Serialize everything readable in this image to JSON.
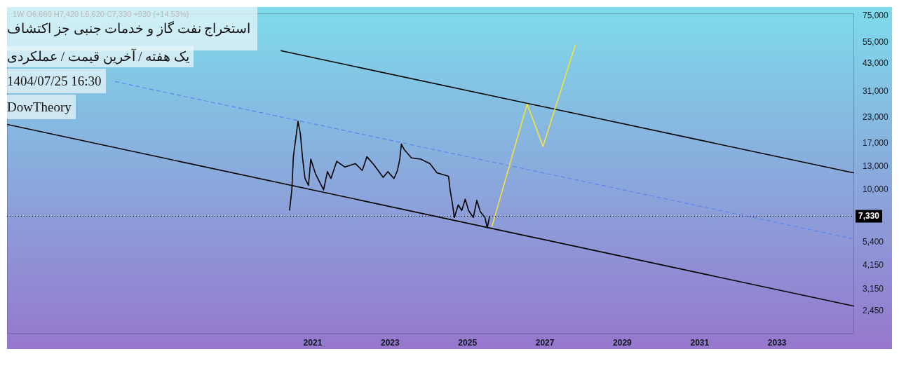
{
  "chart_data": {
    "type": "line",
    "title": "استخراج نفت گاز و خدمات جنبی جز اکتشاف",
    "subtitle": "یک هفته / آخرین قیمت / عملکردی",
    "annotations": [
      "1W  O6,660  H7,420  L6,620  C7,330  +930 (+14.53%)",
      "1404/07/25 16:30",
      "DowTheory"
    ],
    "series": [
      {
        "color": "#000000",
        "x": [
          2020.4,
          2020.46,
          2020.5,
          2020.62,
          2020.68,
          2020.74,
          2020.8,
          2020.89,
          2020.95,
          2021.07,
          2021.28,
          2021.38,
          2021.47,
          2021.62,
          2021.83,
          2022.1,
          2022.28,
          2022.4,
          2022.58,
          2022.82,
          2022.94,
          2023.1,
          2023.19,
          2023.25,
          2023.29,
          2023.37,
          2023.55,
          2023.79,
          2024.03,
          2024.21,
          2024.51,
          2024.55,
          2024.61,
          2024.66,
          2024.76,
          2024.85,
          2024.94,
          2025.03,
          2025.15,
          2025.24,
          2025.33,
          2025.45,
          2025.51,
          2025.57
        ],
        "values": [
          7830,
          9950,
          14660,
          22060,
          19070,
          14230,
          11360,
          10490,
          14230,
          12010,
          9950,
          12300,
          11360,
          13860,
          12970,
          13500,
          12470,
          14620,
          13320,
          11510,
          12300,
          11360,
          12470,
          14230,
          16920,
          15840,
          14430,
          14230,
          13500,
          12140,
          11660,
          9950,
          8480,
          7230,
          8370,
          7830,
          8940,
          7830,
          7230,
          8820,
          7730,
          7230,
          6410,
          7330
        ]
      },
      {
        "color": "#f5e23a",
        "x": [
          2025.63,
          2026.54,
          2026.95,
          2027.79
        ],
        "values": [
          6500,
          26920,
          16480,
          53720
        ]
      },
      {
        "color": "#000000",
        "x": [
          2020.17,
          2034.99
        ],
        "values": [
          50000,
          12110
        ]
      },
      {
        "color": "#5b86ee",
        "line_style": "dashed",
        "x": [
          2015.89,
          2034.99
        ],
        "values": [
          34940,
          5630
        ]
      },
      {
        "color": "#000000",
        "x": [
          2013.1,
          2034.99
        ],
        "values": [
          21280,
          2585
        ]
      }
    ],
    "log": true,
    "xlim": [
      2013.1,
      2034.99
    ],
    "xticks": [
      2021,
      2023,
      2025,
      2027,
      2029,
      2031,
      2033
    ],
    "ylim": [
      1880,
      77000
    ],
    "yticks": [
      {
        "value": 75000,
        "label": "75,000"
      },
      {
        "value": 55000,
        "label": "55,000"
      },
      {
        "value": 43000,
        "label": "43,000"
      },
      {
        "value": 31000,
        "label": "31,000"
      },
      {
        "value": 23000,
        "label": "23,000"
      },
      {
        "value": 17000,
        "label": "17,000"
      },
      {
        "value": 13000,
        "label": "13,000"
      },
      {
        "value": 10000,
        "label": "10,000"
      },
      {
        "value": 5400,
        "label": "5,400"
      },
      {
        "value": 4150,
        "label": "4,150"
      },
      {
        "value": 3150,
        "label": "3,150"
      },
      {
        "value": 2450,
        "label": "2,450"
      }
    ],
    "ref_lines": [
      {
        "axis": "y",
        "value": 7330,
        "label": "7,330",
        "color": "#000000"
      }
    ],
    "grid": false,
    "legend": false,
    "marker": "none"
  }
}
